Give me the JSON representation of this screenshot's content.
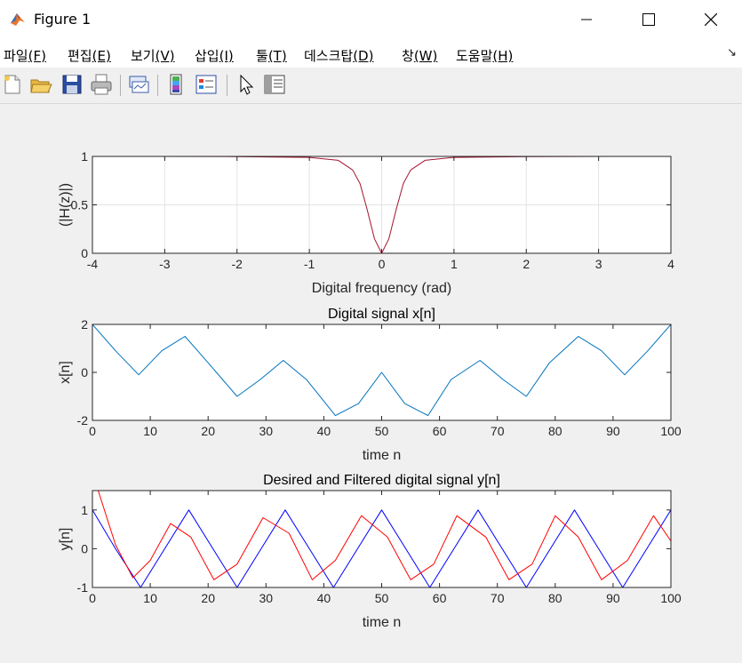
{
  "window": {
    "title": "Figure 1"
  },
  "menu": {
    "items": [
      {
        "label": "파일",
        "mnemonic": "(F)"
      },
      {
        "label": "편집",
        "mnemonic": "(E)"
      },
      {
        "label": "보기",
        "mnemonic": "(V)"
      },
      {
        "label": "삽입",
        "mnemonic": "(I)"
      },
      {
        "label": "툴",
        "mnemonic": "(T)"
      },
      {
        "label": "데스크탑",
        "mnemonic": "(D)"
      },
      {
        "label": "창",
        "mnemonic": "(W)"
      },
      {
        "label": "도움말",
        "mnemonic": "(H)"
      }
    ]
  },
  "toolbar": {
    "buttons": [
      "new-figure-icon",
      "open-file-icon",
      "save-icon",
      "print-icon",
      "link-plot-icon",
      "colorbar-icon",
      "legend-icon",
      "pointer-icon",
      "property-inspector-icon"
    ]
  },
  "colors": {
    "magnitude": "#a2142f",
    "signal": "#0072bd",
    "desired": "#0000ff",
    "filtered": "#ff0000"
  },
  "chart_data": [
    {
      "type": "line",
      "title": "",
      "xlabel": "Digital frequency (rad)",
      "ylabel": "(|H(z)|)",
      "xlim": [
        -4,
        4
      ],
      "ylim": [
        0,
        1
      ],
      "xticks": [
        "-4",
        "-3",
        "-2",
        "-1",
        "0",
        "1",
        "2",
        "3",
        "4"
      ],
      "yticks": [
        "0",
        "0.5",
        "1"
      ],
      "grid": true,
      "series": [
        {
          "x": [
            -3.14,
            -2.0,
            -1.0,
            -0.6,
            -0.4,
            -0.3,
            -0.2,
            -0.1,
            0,
            0.1,
            0.2,
            0.3,
            0.4,
            0.6,
            1.0,
            2.0,
            3.14
          ],
          "y": [
            1.0,
            0.998,
            0.99,
            0.96,
            0.86,
            0.72,
            0.45,
            0.15,
            0,
            0.15,
            0.45,
            0.72,
            0.86,
            0.96,
            0.99,
            0.998,
            1.0
          ]
        }
      ]
    },
    {
      "type": "line",
      "title": "Digital signal x[n]",
      "xlabel": "time n",
      "ylabel": "x[n]",
      "xlim": [
        0,
        100
      ],
      "ylim": [
        -2,
        2
      ],
      "xticks": [
        "0",
        "10",
        "20",
        "30",
        "40",
        "50",
        "60",
        "70",
        "80",
        "90",
        "100"
      ],
      "yticks": [
        "-2",
        "0",
        "2"
      ],
      "grid": false,
      "series": [
        {
          "x": [
            0,
            4,
            8,
            12,
            16,
            20,
            25,
            29,
            33,
            37,
            42,
            46,
            50,
            54,
            58,
            62,
            67,
            71,
            75,
            79,
            84,
            88,
            92,
            96,
            100
          ],
          "y": [
            2.0,
            0.9,
            -0.1,
            0.9,
            1.5,
            0.4,
            -1.0,
            -0.3,
            0.5,
            -0.3,
            -1.8,
            -1.3,
            0.0,
            -1.3,
            -1.8,
            -0.3,
            0.5,
            -0.3,
            -1.0,
            0.4,
            1.5,
            0.9,
            -0.1,
            0.9,
            2.0
          ]
        }
      ]
    },
    {
      "type": "line",
      "title": "Desired and Filtered digital signal y[n]",
      "xlabel": "time n",
      "ylabel": "y[n]",
      "xlim": [
        0,
        100
      ],
      "ylim": [
        -1,
        1.5
      ],
      "xticks": [
        "0",
        "10",
        "20",
        "30",
        "40",
        "50",
        "60",
        "70",
        "80",
        "90",
        "100"
      ],
      "yticks": [
        "-1",
        "0",
        "1"
      ],
      "grid": false,
      "series": [
        {
          "x": [
            0,
            4,
            8.33,
            12.5,
            16.67,
            20.83,
            25,
            29.17,
            33.33,
            37.5,
            41.67,
            45.83,
            50,
            54.17,
            58.33,
            62.5,
            66.67,
            70.83,
            75,
            79.17,
            83.33,
            87.5,
            91.67,
            95.83,
            100
          ],
          "y": [
            1.0,
            0.0,
            -1.0,
            0.0,
            1.0,
            0.0,
            -1.0,
            0.0,
            1.0,
            0.0,
            -1.0,
            0.0,
            1.0,
            0.0,
            -1.0,
            0.0,
            1.0,
            0.0,
            -1.0,
            0.0,
            1.0,
            0.0,
            -1.0,
            0.0,
            1.0
          ]
        },
        {
          "x": [
            1,
            4,
            7,
            10,
            13.5,
            17,
            21,
            25,
            29.5,
            34,
            38,
            42,
            46.5,
            51,
            55,
            59,
            63,
            68,
            72,
            76,
            80,
            84,
            88,
            92.5,
            97,
            100
          ],
          "y": [
            1.5,
            0.1,
            -0.75,
            -0.3,
            0.65,
            0.3,
            -0.8,
            -0.4,
            0.8,
            0.4,
            -0.8,
            -0.3,
            0.85,
            0.3,
            -0.8,
            -0.4,
            0.85,
            0.3,
            -0.8,
            -0.4,
            0.85,
            0.3,
            -0.8,
            -0.3,
            0.85,
            0.2
          ]
        }
      ]
    }
  ]
}
